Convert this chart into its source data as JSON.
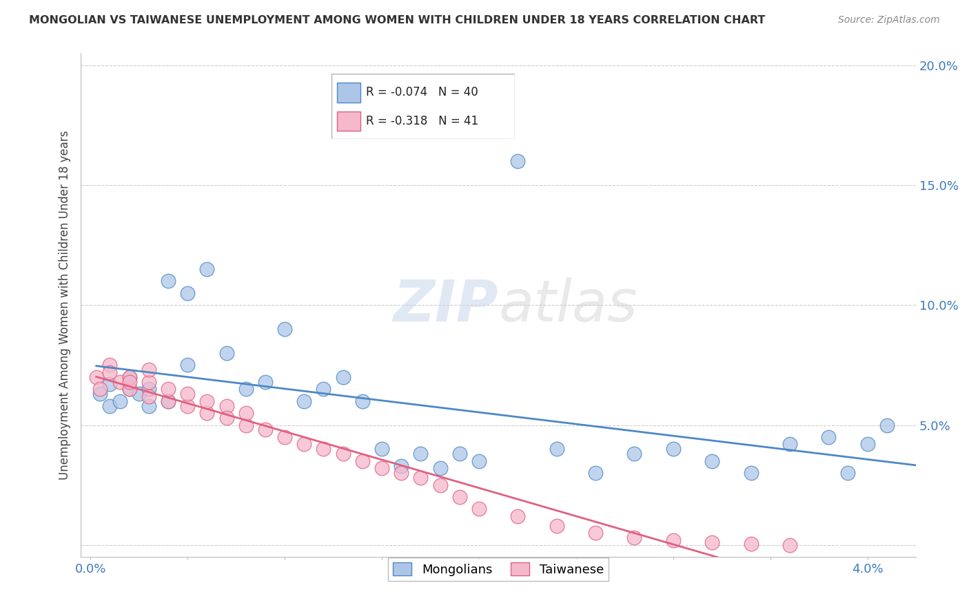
{
  "title": "MONGOLIAN VS TAIWANESE UNEMPLOYMENT AMONG WOMEN WITH CHILDREN UNDER 18 YEARS CORRELATION CHART",
  "source": "Source: ZipAtlas.com",
  "ylabel": "Unemployment Among Women with Children Under 18 years",
  "mongolian_R": -0.074,
  "mongolian_N": 40,
  "taiwanese_R": -0.318,
  "taiwanese_N": 41,
  "mongolian_color": "#adc6e8",
  "taiwanese_color": "#f5b8cc",
  "mongolian_line_color": "#4d88c4",
  "taiwanese_line_color": "#e06080",
  "watermark_zip": "ZIP",
  "watermark_atlas": "atlas",
  "legend_mongolians": "Mongolians",
  "legend_taiwanese": "Taiwanese",
  "mongolian_scatter_x": [
    0.0005,
    0.001,
    0.001,
    0.0015,
    0.002,
    0.002,
    0.0025,
    0.003,
    0.003,
    0.004,
    0.004,
    0.005,
    0.005,
    0.006,
    0.007,
    0.008,
    0.009,
    0.01,
    0.011,
    0.012,
    0.013,
    0.014,
    0.015,
    0.016,
    0.017,
    0.018,
    0.019,
    0.02,
    0.022,
    0.024,
    0.026,
    0.028,
    0.03,
    0.032,
    0.034,
    0.036,
    0.038,
    0.039,
    0.04,
    0.041
  ],
  "mongolian_scatter_y": [
    0.063,
    0.058,
    0.067,
    0.06,
    0.065,
    0.07,
    0.063,
    0.058,
    0.065,
    0.06,
    0.11,
    0.075,
    0.105,
    0.115,
    0.08,
    0.065,
    0.068,
    0.09,
    0.06,
    0.065,
    0.07,
    0.06,
    0.04,
    0.033,
    0.038,
    0.032,
    0.038,
    0.035,
    0.16,
    0.04,
    0.03,
    0.038,
    0.04,
    0.035,
    0.03,
    0.042,
    0.045,
    0.03,
    0.042,
    0.05
  ],
  "taiwanese_scatter_x": [
    0.0003,
    0.0005,
    0.001,
    0.001,
    0.0015,
    0.002,
    0.002,
    0.002,
    0.003,
    0.003,
    0.003,
    0.004,
    0.004,
    0.005,
    0.005,
    0.006,
    0.006,
    0.007,
    0.007,
    0.008,
    0.008,
    0.009,
    0.01,
    0.011,
    0.012,
    0.013,
    0.014,
    0.015,
    0.016,
    0.017,
    0.018,
    0.019,
    0.02,
    0.022,
    0.024,
    0.026,
    0.028,
    0.03,
    0.032,
    0.034,
    0.036
  ],
  "taiwanese_scatter_y": [
    0.07,
    0.065,
    0.075,
    0.072,
    0.068,
    0.065,
    0.07,
    0.068,
    0.062,
    0.068,
    0.073,
    0.06,
    0.065,
    0.058,
    0.063,
    0.055,
    0.06,
    0.058,
    0.053,
    0.05,
    0.055,
    0.048,
    0.045,
    0.042,
    0.04,
    0.038,
    0.035,
    0.032,
    0.03,
    0.028,
    0.025,
    0.02,
    0.015,
    0.012,
    0.008,
    0.005,
    0.003,
    0.002,
    0.001,
    0.0005,
    0.0
  ],
  "xlim": [
    -0.0005,
    0.0425
  ],
  "ylim": [
    -0.005,
    0.205
  ],
  "x_tick_positions": [
    0.0,
    0.005,
    0.01,
    0.015,
    0.02,
    0.025,
    0.03,
    0.035,
    0.04
  ],
  "y_tick_positions": [
    0.0,
    0.05,
    0.1,
    0.15,
    0.2
  ]
}
